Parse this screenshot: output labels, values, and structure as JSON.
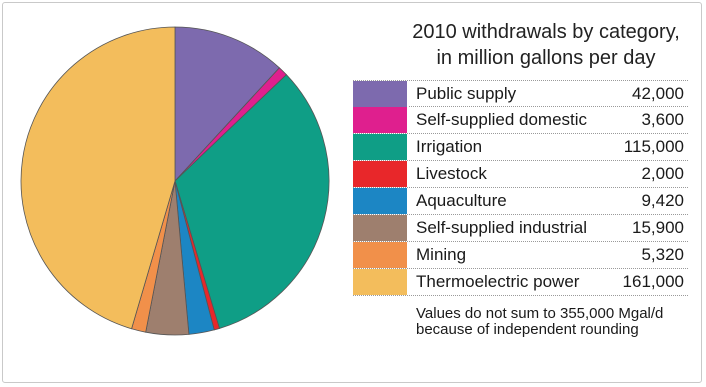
{
  "chart_data": {
    "type": "pie",
    "title_lines": [
      "2010 withdrawals by category,",
      "in million gallons per day"
    ],
    "categories": [
      "Public supply",
      "Self-supplied domestic",
      "Irrigation",
      "Livestock",
      "Aquaculture",
      "Self-supplied industrial",
      "Mining",
      "Thermoelectric power"
    ],
    "values": [
      42000,
      3600,
      115000,
      2000,
      9420,
      15900,
      5320,
      161000
    ],
    "value_labels": [
      "42,000",
      "3,600",
      "115,000",
      "2,000",
      "9,420",
      "15,900",
      "5,320",
      "161,000"
    ],
    "colors": [
      "#7d6aae",
      "#df1f8e",
      "#0f9e86",
      "#e8272a",
      "#1c86c4",
      "#9e7f6e",
      "#f1904a",
      "#f3bd5c"
    ],
    "legend_position": "right",
    "footnote": "Values do not sum to 355,000 Mgal/d because of independent rounding"
  }
}
